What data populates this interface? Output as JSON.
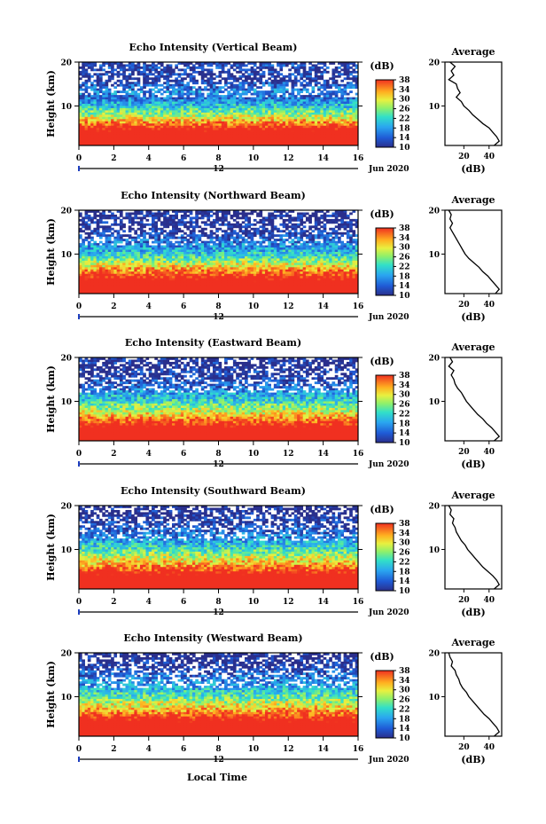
{
  "figure": {
    "xlabel": "Local Time",
    "average_title": "Average",
    "average_xlabel": "(dB)",
    "ylabel": "Height (km)",
    "colorbar_unit": "(dB)",
    "date_label": "Jun 2020",
    "date_marker_tick": "12"
  },
  "chart_data": [
    {
      "type": "heatmap",
      "title": "Echo Intensity (Vertical Beam)",
      "xlabel": "",
      "ylabel": "Height (km)",
      "xlim": [
        0,
        16
      ],
      "ylim": [
        1,
        20
      ],
      "x_ticks": [
        "0",
        "2",
        "4",
        "6",
        "8",
        "10",
        "12",
        "14",
        "16"
      ],
      "y_ticks": [
        "10",
        "20"
      ],
      "colorbar": {
        "unit": "(dB)",
        "range": [
          10,
          38
        ],
        "ticks": [
          "10",
          "14",
          "18",
          "22",
          "26",
          "30",
          "34",
          "38"
        ]
      },
      "average_profile": {
        "title": "Average",
        "xlabel": "(dB)",
        "xlim": [
          5,
          50
        ],
        "x_ticks": [
          "20",
          "40"
        ],
        "height": [
          20,
          19,
          18,
          17,
          16,
          15,
          14,
          13,
          12,
          11,
          10,
          9,
          8,
          7,
          6,
          5,
          4,
          3,
          2,
          1
        ],
        "value": [
          9,
          13,
          10,
          12,
          8,
          14,
          15,
          17,
          14,
          18,
          20,
          24,
          27,
          31,
          35,
          40,
          43,
          46,
          48,
          44
        ]
      }
    },
    {
      "type": "heatmap",
      "title": "Echo Intensity (Northward Beam)",
      "xlabel": "",
      "ylabel": "Height (km)",
      "xlim": [
        0,
        16
      ],
      "ylim": [
        1,
        20
      ],
      "x_ticks": [
        "0",
        "2",
        "4",
        "6",
        "8",
        "10",
        "12",
        "14",
        "16"
      ],
      "y_ticks": [
        "10",
        "20"
      ],
      "colorbar": {
        "unit": "(dB)",
        "range": [
          10,
          38
        ],
        "ticks": [
          "10",
          "14",
          "18",
          "22",
          "26",
          "30",
          "34",
          "38"
        ]
      },
      "average_profile": {
        "title": "Average",
        "xlabel": "(dB)",
        "xlim": [
          5,
          50
        ],
        "x_ticks": [
          "20",
          "40"
        ],
        "height": [
          20,
          19,
          18,
          17,
          16,
          15,
          14,
          13,
          12,
          11,
          10,
          9,
          8,
          7,
          6,
          5,
          4,
          3,
          2,
          1
        ],
        "value": [
          8,
          10,
          9,
          11,
          9,
          11,
          13,
          15,
          17,
          19,
          21,
          24,
          28,
          32,
          35,
          39,
          42,
          45,
          48,
          45
        ]
      }
    },
    {
      "type": "heatmap",
      "title": "Echo Intensity (Eastward Beam)",
      "xlabel": "",
      "ylabel": "Height (km)",
      "xlim": [
        0,
        16
      ],
      "ylim": [
        1,
        20
      ],
      "x_ticks": [
        "0",
        "2",
        "4",
        "6",
        "8",
        "10",
        "12",
        "14",
        "16"
      ],
      "y_ticks": [
        "10",
        "20"
      ],
      "colorbar": {
        "unit": "(dB)",
        "range": [
          10,
          38
        ],
        "ticks": [
          "10",
          "14",
          "18",
          "22",
          "26",
          "30",
          "34",
          "38"
        ]
      },
      "average_profile": {
        "title": "Average",
        "xlabel": "(dB)",
        "xlim": [
          5,
          50
        ],
        "x_ticks": [
          "20",
          "40"
        ],
        "height": [
          20,
          19,
          18,
          17,
          16,
          15,
          14,
          13,
          12,
          11,
          10,
          9,
          8,
          7,
          6,
          5,
          4,
          3,
          2,
          1
        ],
        "value": [
          9,
          11,
          8,
          12,
          10,
          12,
          13,
          15,
          18,
          20,
          22,
          25,
          28,
          31,
          35,
          38,
          42,
          45,
          48,
          44
        ]
      }
    },
    {
      "type": "heatmap",
      "title": "Echo Intensity (Southward Beam)",
      "xlabel": "",
      "ylabel": "Height (km)",
      "xlim": [
        0,
        16
      ],
      "ylim": [
        1,
        20
      ],
      "x_ticks": [
        "0",
        "2",
        "4",
        "6",
        "8",
        "10",
        "12",
        "14",
        "16"
      ],
      "y_ticks": [
        "10",
        "20"
      ],
      "colorbar": {
        "unit": "(dB)",
        "range": [
          10,
          38
        ],
        "ticks": [
          "10",
          "14",
          "18",
          "22",
          "26",
          "30",
          "34",
          "38"
        ]
      },
      "average_profile": {
        "title": "Average",
        "xlabel": "(dB)",
        "xlim": [
          5,
          50
        ],
        "x_ticks": [
          "20",
          "40"
        ],
        "height": [
          20,
          19,
          18,
          17,
          16,
          15,
          14,
          13,
          12,
          11,
          10,
          9,
          8,
          7,
          6,
          5,
          4,
          3,
          2,
          1
        ],
        "value": [
          8,
          10,
          9,
          12,
          11,
          13,
          14,
          16,
          18,
          21,
          23,
          26,
          29,
          32,
          35,
          39,
          43,
          46,
          48,
          44
        ]
      }
    },
    {
      "type": "heatmap",
      "title": "Echo Intensity (Westward Beam)",
      "xlabel": "Local Time",
      "ylabel": "Height (km)",
      "xlim": [
        0,
        16
      ],
      "ylim": [
        1,
        20
      ],
      "x_ticks": [
        "0",
        "2",
        "4",
        "6",
        "8",
        "10",
        "12",
        "14",
        "16"
      ],
      "y_ticks": [
        "10",
        "20"
      ],
      "colorbar": {
        "unit": "(dB)",
        "range": [
          10,
          38
        ],
        "ticks": [
          "10",
          "14",
          "18",
          "22",
          "26",
          "30",
          "34",
          "38"
        ]
      },
      "average_profile": {
        "title": "Average",
        "xlabel": "(dB)",
        "xlim": [
          5,
          50
        ],
        "x_ticks": [
          "20",
          "40"
        ],
        "height": [
          20,
          19,
          18,
          17,
          16,
          15,
          14,
          13,
          12,
          11,
          10,
          9,
          8,
          7,
          6,
          5,
          4,
          3,
          2,
          1
        ],
        "value": [
          8,
          9,
          11,
          10,
          13,
          14,
          16,
          17,
          19,
          22,
          24,
          27,
          30,
          33,
          36,
          40,
          43,
          46,
          48,
          44
        ]
      }
    }
  ]
}
